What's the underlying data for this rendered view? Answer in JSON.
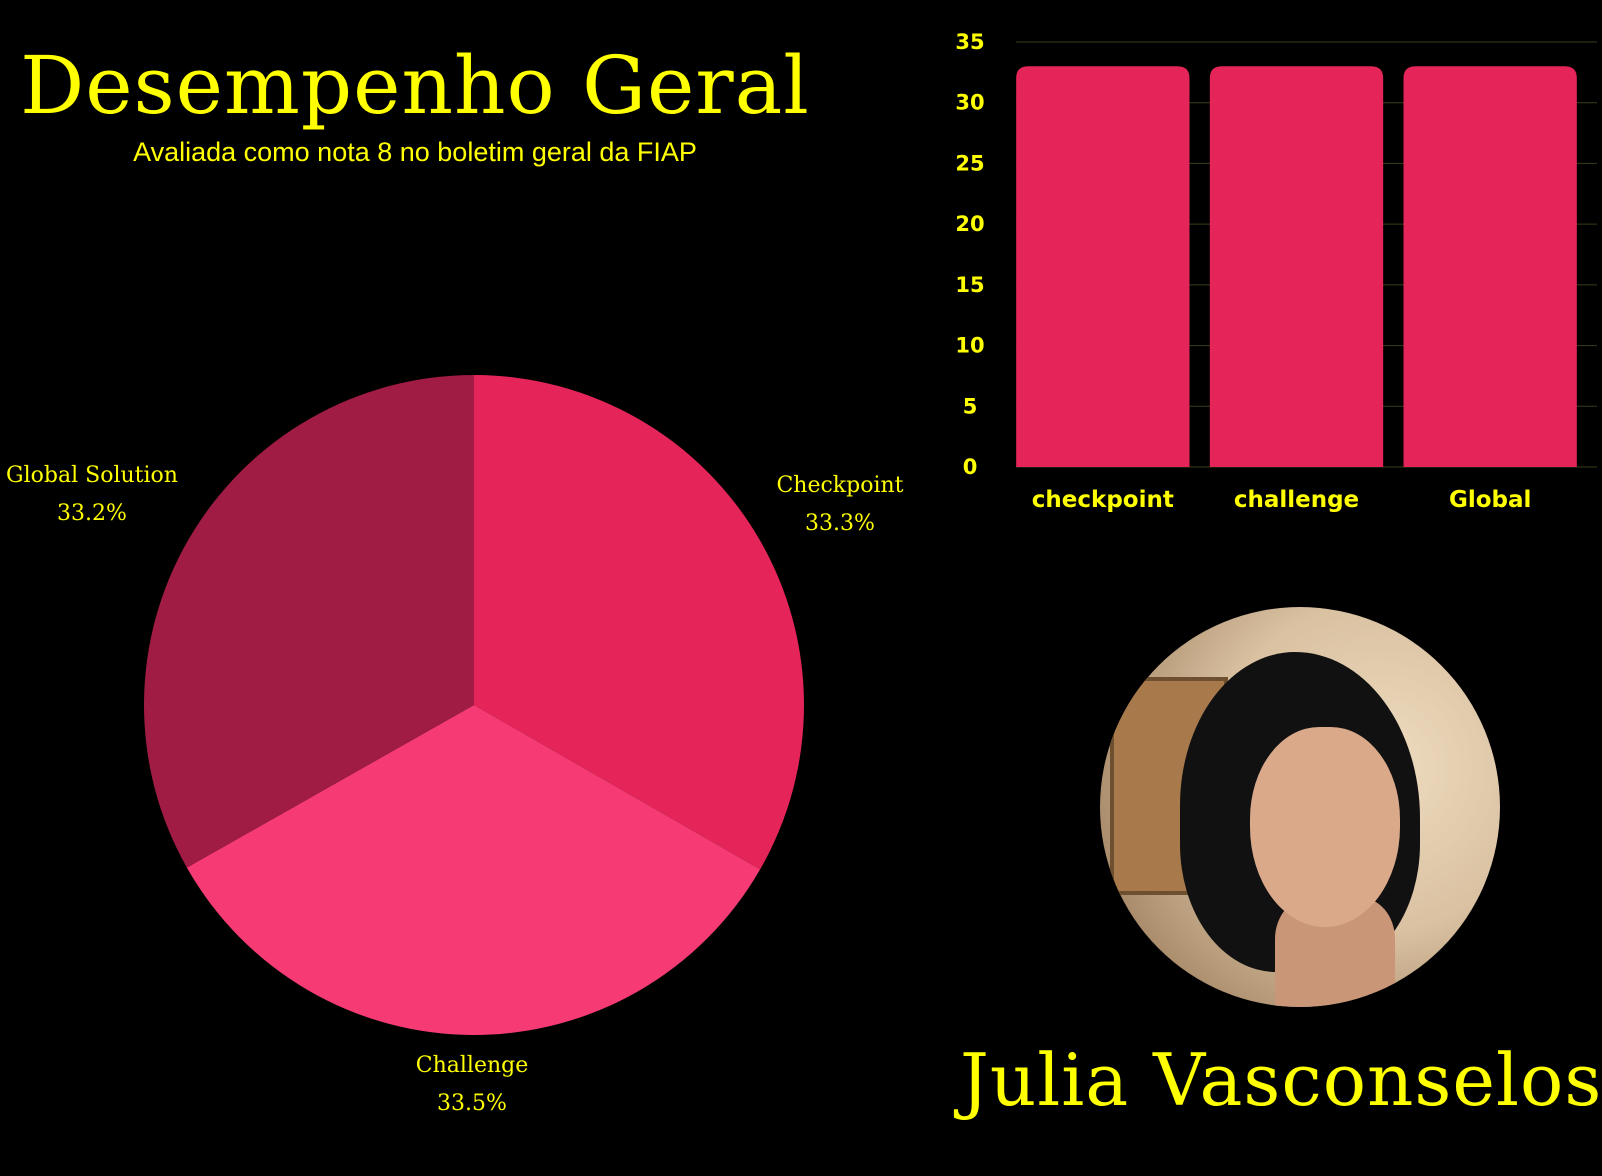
{
  "header": {
    "title": "Desempenho Geral",
    "subtitle": "Avaliada como nota 8 no boletim geral da FIAP"
  },
  "profile": {
    "name": "Julia Vasconselos"
  },
  "colors": {
    "background": "#000000",
    "text": "#ffff00",
    "checkpoint": "#e5255a",
    "challenge": "#f63b74",
    "global_solution": "#a01c44",
    "bar": "#e5255a",
    "grid": "#3d3d1a"
  },
  "chart_data": [
    {
      "type": "pie",
      "slices": [
        {
          "label": "Checkpoint",
          "percent_label": "33.3%",
          "value": 33.3
        },
        {
          "label": "Challenge",
          "percent_label": "33.5%",
          "value": 33.5
        },
        {
          "label": "Global Solution",
          "percent_label": "33.2%",
          "value": 33.2
        }
      ]
    },
    {
      "type": "bar",
      "categories": [
        "checkpoint",
        "challenge",
        "Global"
      ],
      "values": [
        33,
        33,
        33
      ],
      "ylim": [
        0,
        35
      ],
      "yticks": [
        0,
        5,
        10,
        15,
        20,
        25,
        30,
        35
      ],
      "grid": true,
      "title": "",
      "xlabel": "",
      "ylabel": ""
    }
  ]
}
